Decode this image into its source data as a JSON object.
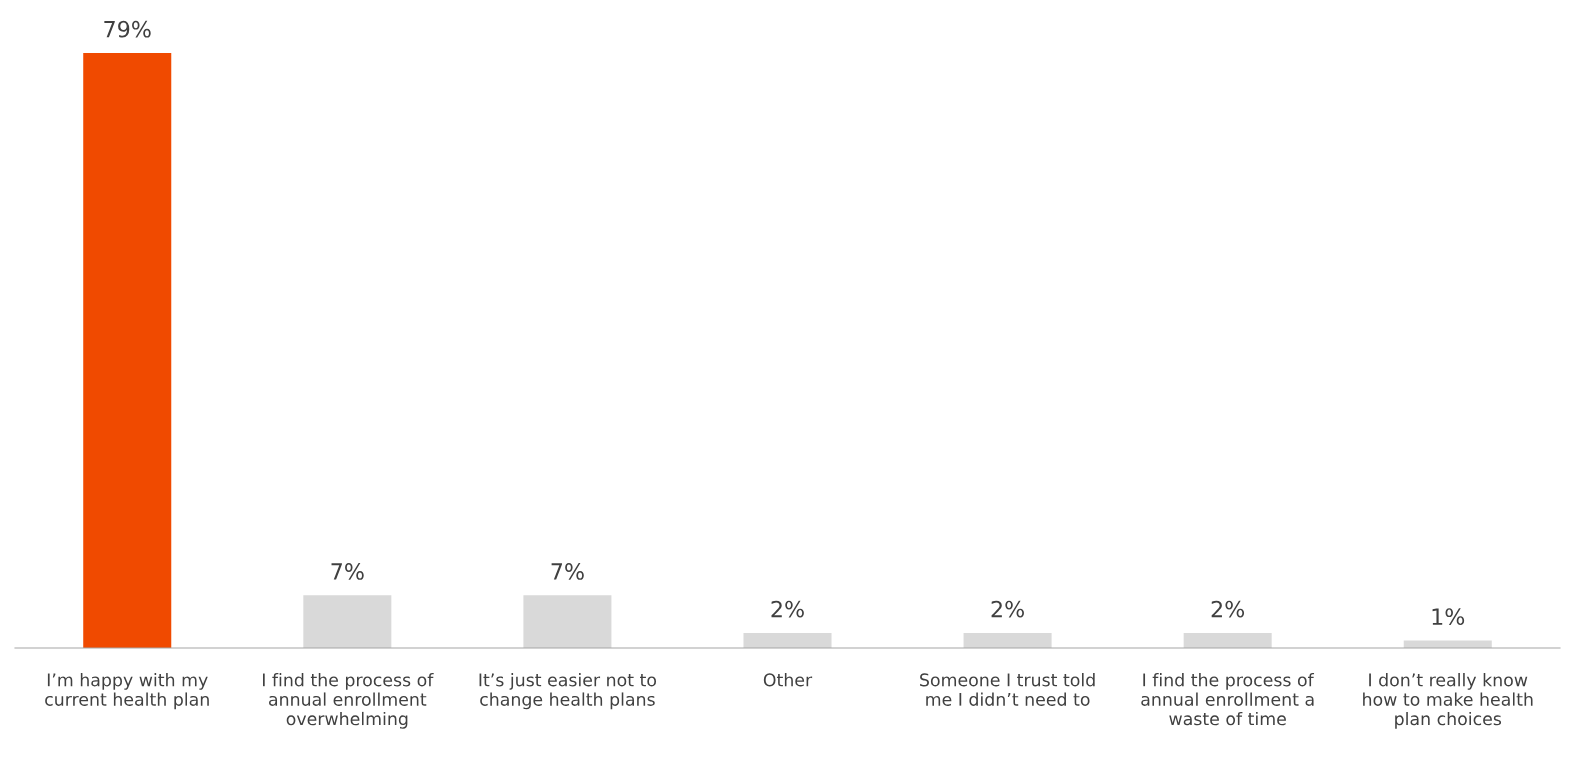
{
  "chart_data": {
    "type": "bar",
    "categories": [
      "I’m happy with my\ncurrent health plan",
      "I find the process of\nannual enrollment\noverwhelming",
      "It’s just easier not to\nchange health plans",
      "Other",
      "Someone I trust told\nme I didn’t need to",
      "I find the process of\nannual enrollment a\nwaste of time",
      "I don’t really know\nhow to make health\nplan choices"
    ],
    "values": [
      79,
      7,
      7,
      2,
      2,
      2,
      1
    ],
    "value_labels": [
      "79%",
      "7%",
      "7%",
      "2%",
      "2%",
      "2%",
      "1%"
    ],
    "colors": [
      "#f04a00",
      "#d9d9d9",
      "#d9d9d9",
      "#d9d9d9",
      "#d9d9d9",
      "#d9d9d9",
      "#d9d9d9"
    ],
    "grid": false,
    "legend": false
  }
}
